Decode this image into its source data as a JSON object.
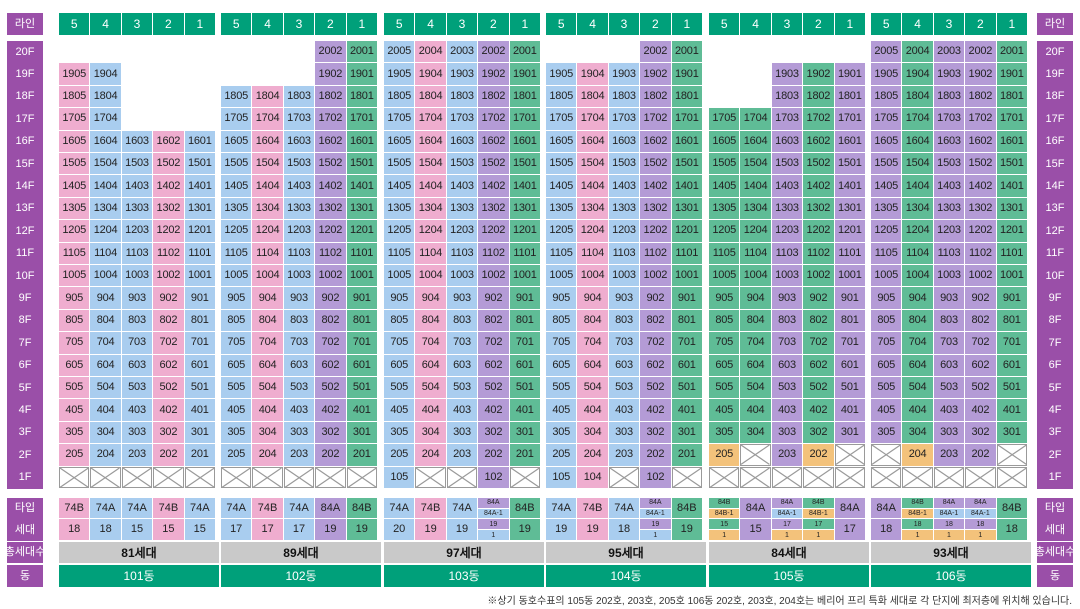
{
  "header_label": "라인",
  "side_labels": {
    "type": "타입",
    "households": "세대",
    "total": "총세대수",
    "building": "동"
  },
  "floors": [
    "20F",
    "19F",
    "18F",
    "17F",
    "16F",
    "15F",
    "14F",
    "13F",
    "12F",
    "11F",
    "10F",
    "9F",
    "8F",
    "7F",
    "6F",
    "5F",
    "4F",
    "3F",
    "2F",
    "1F"
  ],
  "colors": {
    "blue": "#a9cdef",
    "pink": "#efadcf",
    "purple": "#b49bd6",
    "green": "#5fbc96",
    "orange": "#f3c27b",
    "header_green": "#00a07a",
    "side_purple": "#9a4fa8",
    "total_gray": "#c9c9c9"
  },
  "buildings": [
    {
      "name": "101동",
      "total": "81세대",
      "lines": [
        {
          "line": "5",
          "color": "pink",
          "top": 19,
          "bottom": 2,
          "first": "x",
          "type": "74B",
          "type_color": "pink",
          "count": "18"
        },
        {
          "line": "4",
          "color": "blue",
          "top": 19,
          "bottom": 2,
          "first": "x",
          "type": "74A",
          "type_color": "blue",
          "count": "18"
        },
        {
          "line": "3",
          "color": "blue",
          "top": 16,
          "bottom": 2,
          "first": "x",
          "type": "74A",
          "type_color": "blue",
          "count": "15"
        },
        {
          "line": "2",
          "color": "pink",
          "top": 16,
          "bottom": 2,
          "first": "x",
          "type": "74B",
          "type_color": "pink",
          "count": "15"
        },
        {
          "line": "1",
          "color": "blue",
          "top": 16,
          "bottom": 2,
          "first": "x",
          "type": "74A",
          "type_color": "blue",
          "count": "15"
        }
      ]
    },
    {
      "name": "102동",
      "total": "89세대",
      "lines": [
        {
          "line": "5",
          "color": "blue",
          "top": 18,
          "bottom": 2,
          "first": "x",
          "type": "74A",
          "type_color": "blue",
          "count": "17"
        },
        {
          "line": "4",
          "color": "pink",
          "top": 18,
          "bottom": 2,
          "first": "x",
          "type": "74B",
          "type_color": "pink",
          "count": "17"
        },
        {
          "line": "3",
          "color": "blue",
          "top": 18,
          "bottom": 2,
          "first": "x",
          "type": "74A",
          "type_color": "blue",
          "count": "17"
        },
        {
          "line": "2",
          "color": "purple",
          "top": 20,
          "bottom": 2,
          "first": "x",
          "type": "84A",
          "type_color": "purple",
          "count": "19"
        },
        {
          "line": "1",
          "color": "green",
          "top": 20,
          "bottom": 2,
          "first": "x",
          "type": "84B",
          "type_color": "green",
          "count": "19"
        }
      ]
    },
    {
      "name": "103동",
      "total": "97세대",
      "lines": [
        {
          "line": "5",
          "color": "blue",
          "top": 20,
          "bottom": 1,
          "first": "105",
          "type": "74A",
          "type_color": "blue",
          "count": "20"
        },
        {
          "line": "4",
          "color": "pink",
          "top": 20,
          "bottom": 2,
          "first": "x",
          "type": "74B",
          "type_color": "pink",
          "count": "19"
        },
        {
          "line": "3",
          "color": "blue",
          "top": 20,
          "bottom": 2,
          "first": "x",
          "type": "74A",
          "type_color": "blue",
          "count": "19"
        },
        {
          "line": "2",
          "color": "purple",
          "top": 20,
          "bottom": 1,
          "first": "102",
          "special": true,
          "type_split": [
            "84A",
            "84A-1"
          ],
          "type_split_colors": [
            "purple",
            "blue"
          ],
          "count_split": [
            "19",
            "1"
          ],
          "count_split_colors": [
            "purple",
            "blue"
          ]
        },
        {
          "line": "1",
          "color": "green",
          "top": 20,
          "bottom": 2,
          "first": "x",
          "type": "84B",
          "type_color": "green",
          "count": "19"
        }
      ]
    },
    {
      "name": "104동",
      "total": "95세대",
      "lines": [
        {
          "line": "5",
          "color": "blue",
          "top": 19,
          "bottom": 1,
          "first": "105",
          "type": "74A",
          "type_color": "blue",
          "count": "19"
        },
        {
          "line": "4",
          "color": "pink",
          "top": 19,
          "bottom": 1,
          "first": "104",
          "type": "74B",
          "type_color": "pink",
          "count": "19"
        },
        {
          "line": "3",
          "color": "blue",
          "top": 19,
          "bottom": 2,
          "first": "x",
          "type": "74A",
          "type_color": "blue",
          "count": "18"
        },
        {
          "line": "2",
          "color": "purple",
          "top": 20,
          "bottom": 1,
          "first": "102",
          "special": true,
          "type_split": [
            "84A",
            "84A-1"
          ],
          "type_split_colors": [
            "purple",
            "blue"
          ],
          "count_split": [
            "19",
            "1"
          ],
          "count_split_colors": [
            "purple",
            "blue"
          ]
        },
        {
          "line": "1",
          "color": "green",
          "top": 20,
          "bottom": 2,
          "first": "x",
          "type": "84B",
          "type_color": "green",
          "count": "19"
        }
      ]
    },
    {
      "name": "105동",
      "total": "84세대",
      "lines": [
        {
          "line": "5",
          "color": "green",
          "top": 17,
          "bottom": 2,
          "first": "x",
          "f2": "orange",
          "special": true,
          "type_split": [
            "84B",
            "84B-1"
          ],
          "type_split_colors": [
            "green",
            "orange"
          ],
          "count_split": [
            "15",
            "1"
          ],
          "count_split_colors": [
            "green",
            "orange"
          ]
        },
        {
          "line": "4",
          "color": "green",
          "top": 17,
          "bottom": 3,
          "first": "x",
          "f2x": true,
          "type": "84A",
          "type_color": "purple",
          "count": "15"
        },
        {
          "line": "3",
          "color": "purple",
          "top": 19,
          "bottom": 2,
          "first": "x",
          "special": true,
          "type_split": [
            "84A",
            "84A-1"
          ],
          "type_split_colors": [
            "purple",
            "blue"
          ],
          "count_split": [
            "17",
            "1"
          ],
          "count_split_colors": [
            "purple",
            "orange"
          ]
        },
        {
          "line": "2",
          "color": "green",
          "top": 19,
          "bottom": 2,
          "first": "x",
          "f2": "orange",
          "special": true,
          "type_split": [
            "84B",
            "84B-1"
          ],
          "type_split_colors": [
            "green",
            "orange"
          ],
          "count_split": [
            "17",
            "1"
          ],
          "count_split_colors": [
            "green",
            "orange"
          ]
        },
        {
          "line": "1",
          "color": "purple",
          "top": 19,
          "bottom": 3,
          "first": "x",
          "f2x": true,
          "type": "84A",
          "type_color": "purple",
          "count": "17"
        }
      ]
    },
    {
      "name": "106동",
      "total": "93세대",
      "lines": [
        {
          "line": "5",
          "color": "purple",
          "top": 20,
          "bottom": 3,
          "first": "x",
          "f2x": true,
          "type": "84A",
          "type_color": "purple",
          "count": "18"
        },
        {
          "line": "4",
          "color": "green",
          "top": 20,
          "bottom": 2,
          "first": "x",
          "f2": "orange",
          "special": true,
          "type_split": [
            "84B",
            "84B-1"
          ],
          "type_split_colors": [
            "green",
            "orange"
          ],
          "count_split": [
            "18",
            "1"
          ],
          "count_split_colors": [
            "green",
            "orange"
          ]
        },
        {
          "line": "3",
          "color": "purple",
          "top": 20,
          "bottom": 2,
          "first": "x",
          "special": true,
          "type_split": [
            "84A",
            "84A-1"
          ],
          "type_split_colors": [
            "purple",
            "blue"
          ],
          "count_split": [
            "18",
            "1"
          ],
          "count_split_colors": [
            "purple",
            "orange"
          ]
        },
        {
          "line": "2",
          "color": "purple",
          "top": 20,
          "bottom": 2,
          "first": "x",
          "special": true,
          "type_split": [
            "84A",
            "84A-1"
          ],
          "type_split_colors": [
            "purple",
            "blue"
          ],
          "count_split": [
            "18",
            "1"
          ],
          "count_split_colors": [
            "purple",
            "orange"
          ]
        },
        {
          "line": "1",
          "color": "green",
          "top": 20,
          "bottom": 3,
          "first": "x",
          "f2x": true,
          "type": "84B",
          "type_color": "green",
          "count": "18"
        }
      ]
    }
  ],
  "footnote": "※상기 동호수표의 105동 202호, 203호, 205호 106동 202호, 203호, 204호는 베리어 프리 특화 세대로 각 단지에 최저층에 위치해 있습니다."
}
